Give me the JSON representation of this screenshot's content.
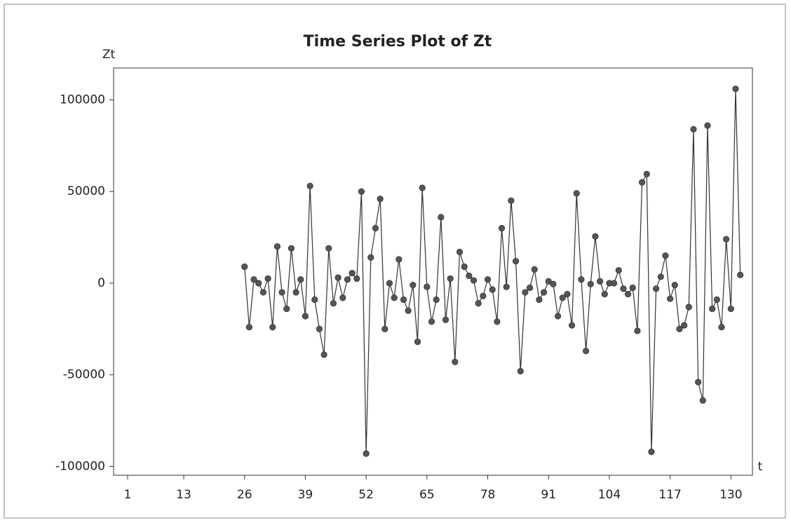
{
  "chart_data": {
    "type": "line",
    "title": "Time Series Plot of Zt",
    "y_label": "Zt",
    "x_label": "t",
    "x": [
      26,
      27,
      28,
      29,
      30,
      31,
      32,
      33,
      34,
      35,
      36,
      37,
      38,
      39,
      40,
      41,
      42,
      43,
      44,
      45,
      46,
      47,
      48,
      49,
      50,
      51,
      52,
      53,
      54,
      55,
      56,
      57,
      58,
      59,
      60,
      61,
      62,
      63,
      64,
      65,
      66,
      67,
      68,
      69,
      70,
      71,
      72,
      73,
      74,
      75,
      76,
      77,
      78,
      79,
      80,
      81,
      82,
      83,
      84,
      85,
      86,
      87,
      88,
      89,
      90,
      91,
      92,
      93,
      94,
      95,
      96,
      97,
      98,
      99,
      100,
      101,
      102,
      103,
      104,
      105,
      106,
      107,
      108,
      109,
      110,
      111,
      112,
      113,
      114,
      115,
      116,
      117,
      118,
      119,
      120,
      121,
      122,
      123,
      124,
      125,
      126,
      127,
      128,
      129,
      130,
      131,
      132
    ],
    "values": [
      9000,
      -24000,
      2000,
      0,
      -5000,
      2500,
      -24000,
      20000,
      -5000,
      -14000,
      19000,
      -5000,
      2000,
      -18000,
      53000,
      -9000,
      -25000,
      -39000,
      19000,
      -11000,
      3000,
      -8000,
      2000,
      5500,
      2500,
      50000,
      -93000,
      14000,
      30000,
      46000,
      -25000,
      0,
      -8000,
      13000,
      -9000,
      -15000,
      -1000,
      -32000,
      52000,
      -2000,
      -21000,
      -9000,
      36000,
      -20000,
      2500,
      -43000,
      17000,
      9000,
      4000,
      1500,
      -11000,
      -7000,
      2000,
      -3500,
      -21000,
      30000,
      -2000,
      45000,
      12000,
      -48000,
      -5000,
      -2500,
      7500,
      -9000,
      -5000,
      1000,
      -500,
      -18000,
      -8000,
      -6000,
      -23000,
      49000,
      2000,
      -37000,
      -500,
      25500,
      1000,
      -6000,
      0,
      0,
      7000,
      -3000,
      -6000,
      -2500,
      -26000,
      55000,
      59500,
      -92000,
      -3000,
      3500,
      15000,
      -8500,
      -1000,
      -25000,
      -23000,
      -13000,
      84000,
      -54000,
      -64000,
      86000,
      -14000,
      -9000,
      -24000,
      24000,
      -14000,
      106000,
      4500
    ],
    "color": "#333333",
    "marker_color": "#555555",
    "xlim": [
      -2,
      134.6
    ],
    "ylim": [
      -104800,
      117400
    ],
    "xticks": [
      1,
      13,
      26,
      39,
      52,
      65,
      78,
      91,
      104,
      117,
      130
    ],
    "yticks": [
      -100000,
      -50000,
      0,
      50000,
      100000
    ]
  }
}
